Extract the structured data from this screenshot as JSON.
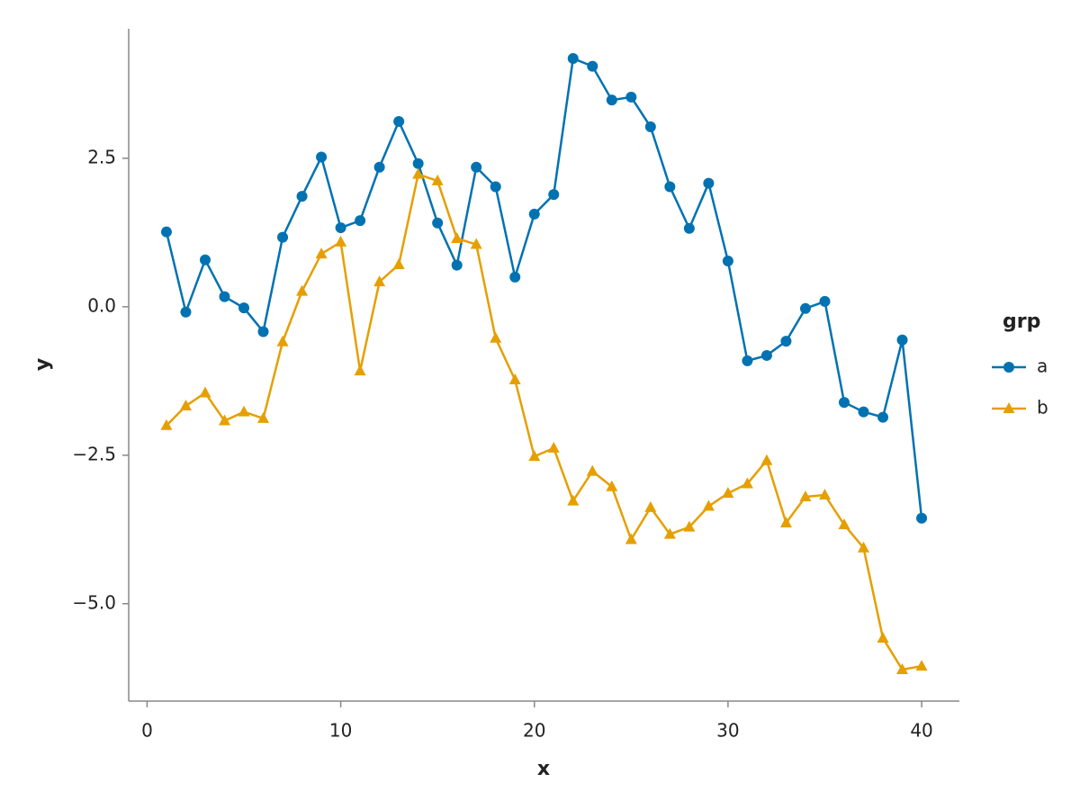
{
  "chart_data": {
    "type": "line",
    "x_label": "x",
    "y_label": "y",
    "x": [
      1,
      2,
      3,
      4,
      5,
      6,
      7,
      8,
      9,
      10,
      11,
      12,
      13,
      14,
      15,
      16,
      17,
      18,
      19,
      20,
      21,
      22,
      23,
      24,
      25,
      26,
      27,
      28,
      29,
      30,
      31,
      32,
      33,
      34,
      35,
      36,
      37,
      38,
      39,
      40
    ],
    "series": [
      {
        "name": "a",
        "color": "#0072b2",
        "marker": "circle",
        "values": [
          1.26,
          -0.09,
          0.79,
          0.17,
          -0.02,
          -0.42,
          1.17,
          1.86,
          2.52,
          1.33,
          1.45,
          2.35,
          3.12,
          2.41,
          1.41,
          0.7,
          2.35,
          2.02,
          0.5,
          1.56,
          1.89,
          4.18,
          4.05,
          3.48,
          3.53,
          3.03,
          2.02,
          1.32,
          2.08,
          0.77,
          -0.91,
          -0.82,
          -0.58,
          -0.03,
          0.09,
          -1.61,
          -1.77,
          -1.86,
          -0.56,
          -3.56
        ]
      },
      {
        "name": "b",
        "color": "#e69f00",
        "marker": "triangle",
        "values": [
          -2.0,
          -1.67,
          -1.45,
          -1.92,
          -1.77,
          -1.88,
          -0.59,
          0.26,
          0.89,
          1.09,
          -1.08,
          0.42,
          0.71,
          2.23,
          2.12,
          1.15,
          1.05,
          -0.53,
          -1.23,
          -2.52,
          -2.38,
          -3.27,
          -2.77,
          -3.03,
          -3.92,
          -3.38,
          -3.83,
          -3.71,
          -3.36,
          -3.14,
          -2.98,
          -2.59,
          -3.64,
          -3.2,
          -3.17,
          -3.67,
          -4.06,
          -5.58,
          -6.11,
          -6.05
        ]
      }
    ],
    "legend_title": "grp",
    "xlim": [
      -0.95,
      41.95
    ],
    "xticks": [
      0,
      10,
      20,
      30,
      40
    ],
    "ylim": [
      -6.64,
      4.68
    ],
    "yticks": [
      {
        "value": -5,
        "label": "−5.0"
      },
      {
        "value": -2.5,
        "label": "−2.5"
      },
      {
        "value": 0,
        "label": "0.0"
      },
      2.5
    ],
    "grid": false
  }
}
